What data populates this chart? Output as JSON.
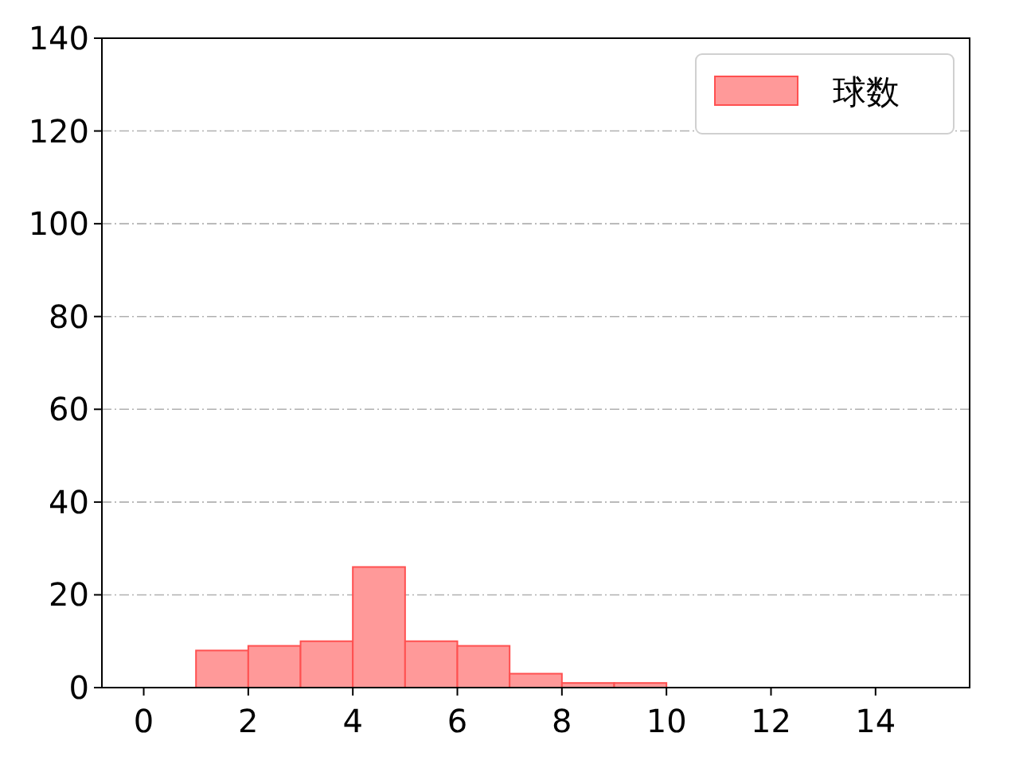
{
  "chart_data": {
    "type": "histogram",
    "bins": [
      1,
      2,
      3,
      4,
      5,
      6,
      7,
      8,
      9,
      10
    ],
    "series": [
      {
        "name": "球数",
        "color": "#ff9999",
        "values": [
          8,
          9,
          10,
          26,
          10,
          9,
          3,
          1,
          1
        ]
      }
    ],
    "xlim": [
      -0.8,
      15.8
    ],
    "xticks": [
      0,
      2,
      4,
      6,
      8,
      10,
      12,
      14
    ],
    "ylim": [
      0,
      140
    ],
    "yticks": [
      0,
      20,
      40,
      60,
      80,
      100,
      120,
      140
    ],
    "grid": "y",
    "legend": "top right"
  }
}
